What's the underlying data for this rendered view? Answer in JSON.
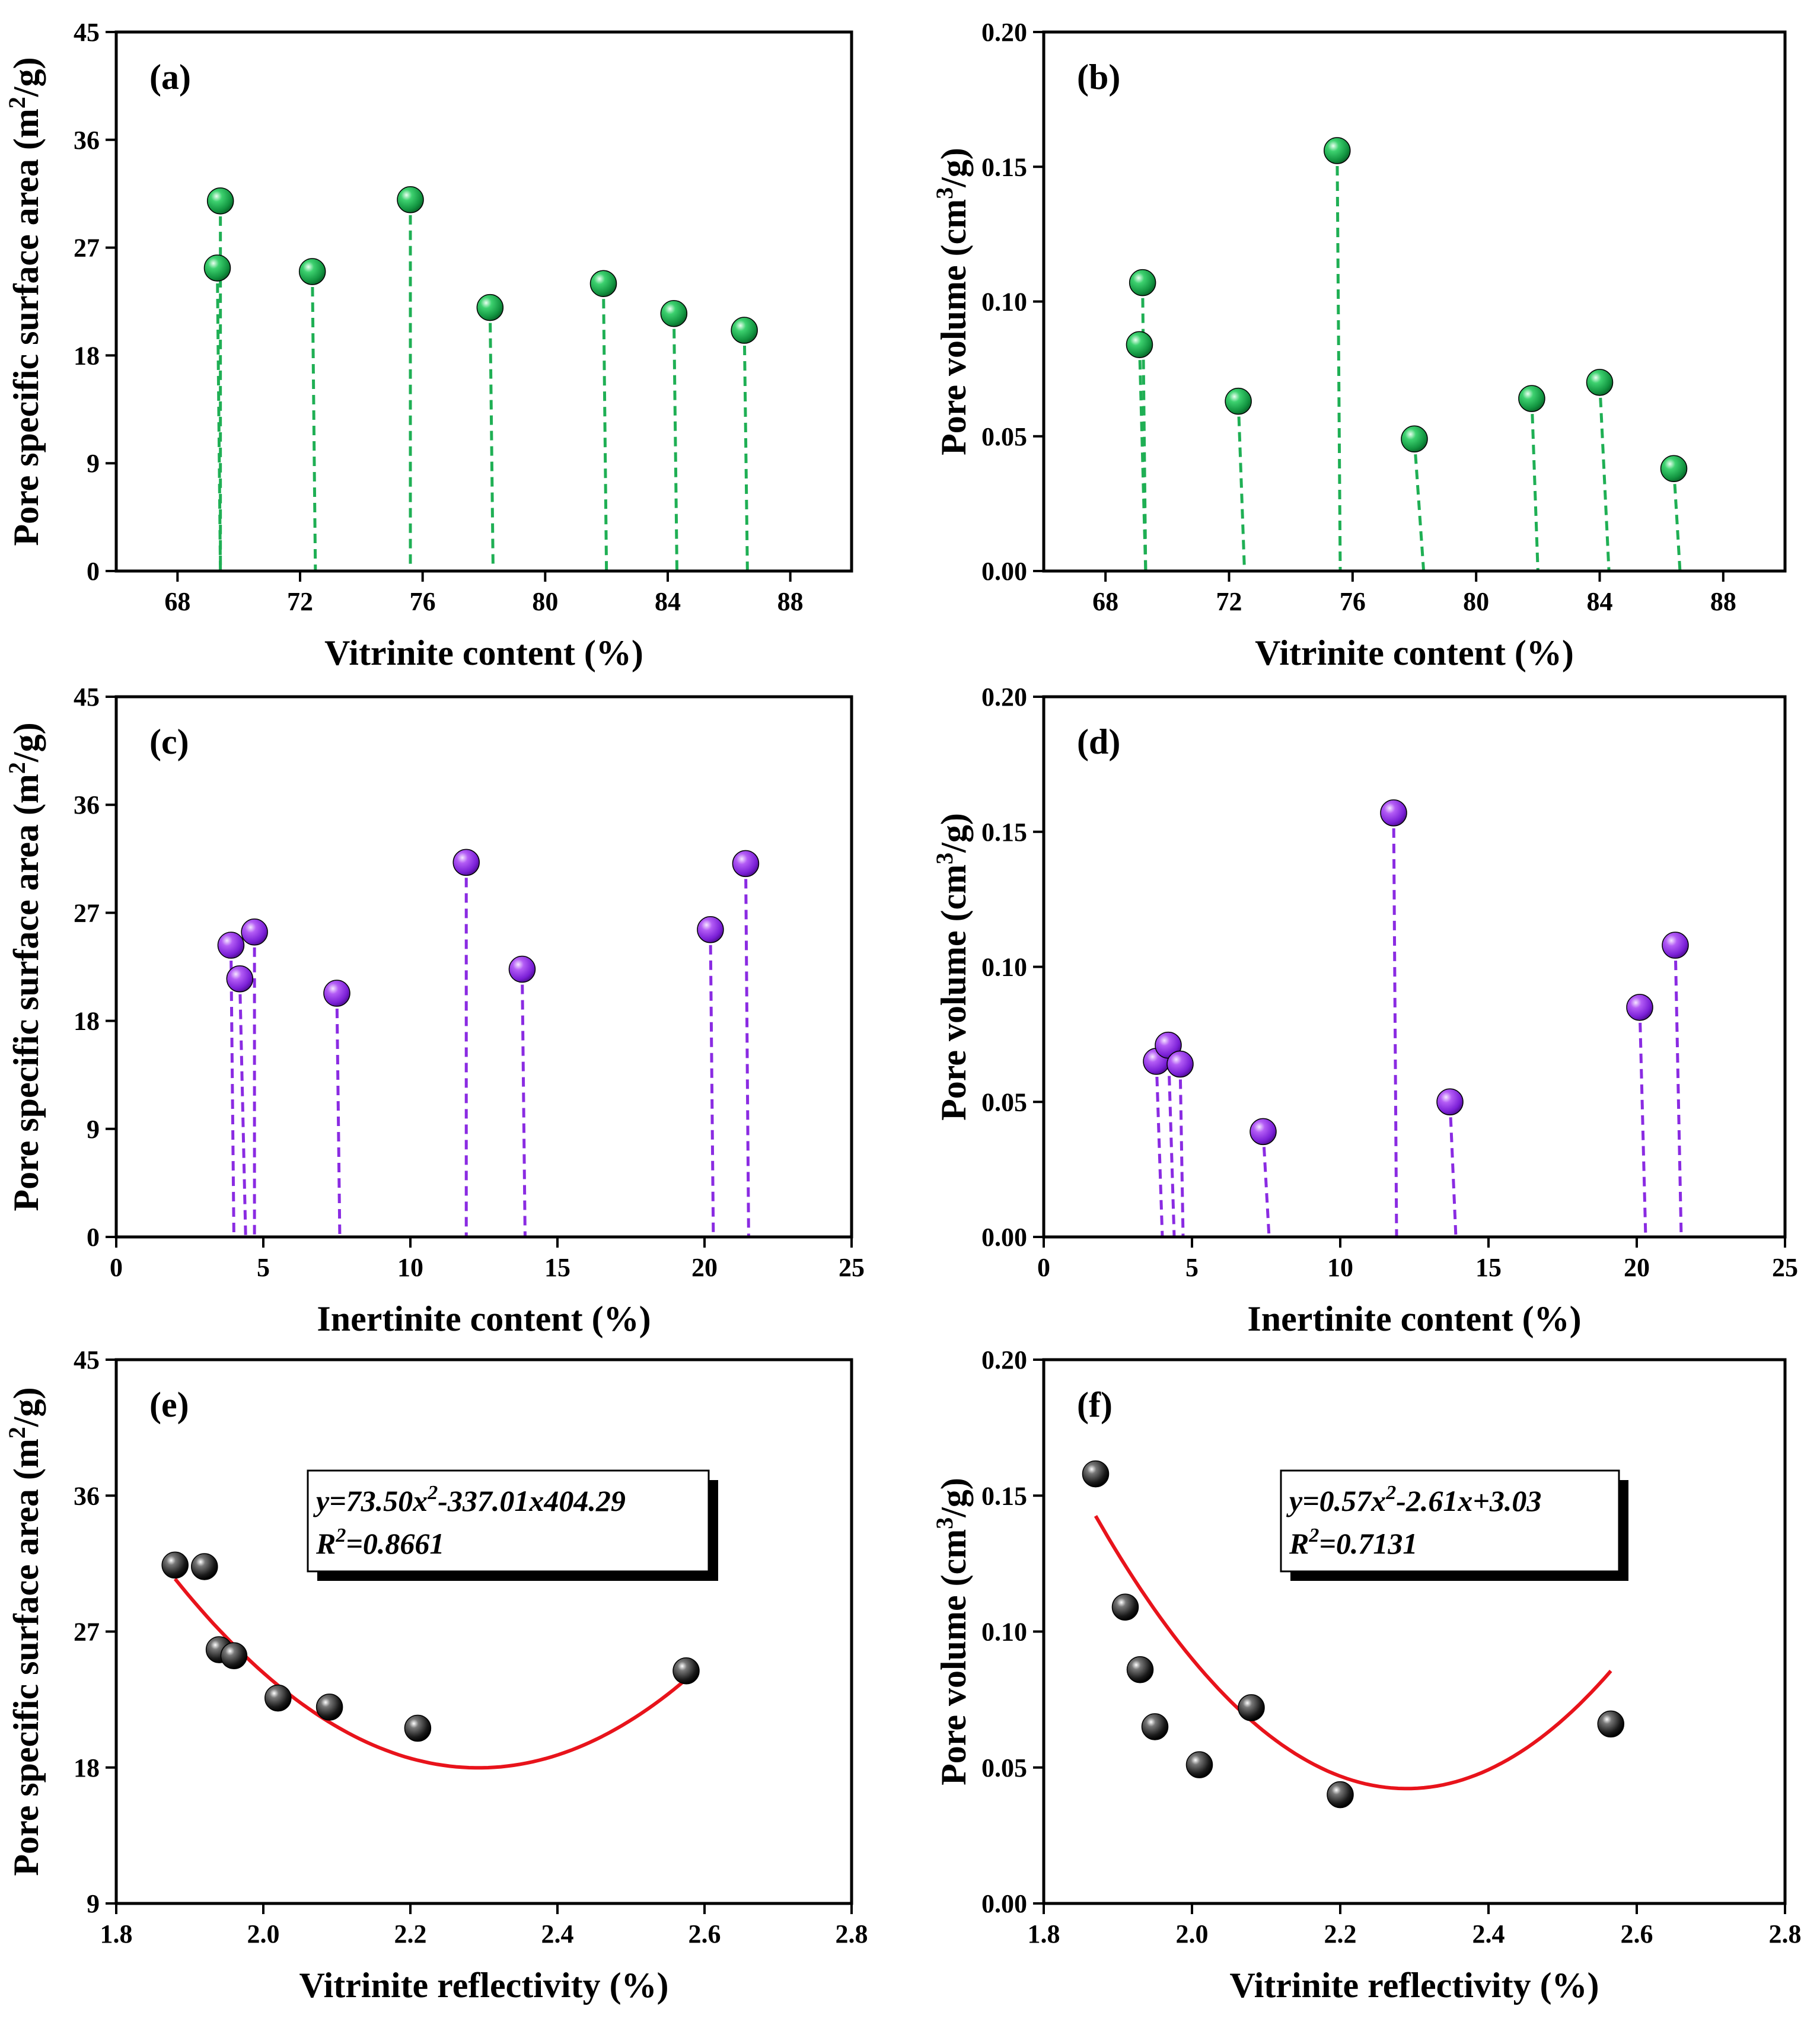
{
  "colors": {
    "green": "#1DA84E",
    "purple": "#8A2BE2",
    "black": "#111111",
    "fit": "#E8131B",
    "stem_green": "#1FAF54",
    "stem_purple": "#8A2BE2"
  },
  "chart_data": [
    {
      "id": "a",
      "type": "scatter",
      "style": "stem",
      "tag": "(a)",
      "xlabel": "Vitrinite content (%)",
      "ylabel_parts": [
        "Pore specific surface area (m",
        "2",
        "/g)"
      ],
      "xlim": [
        66,
        90
      ],
      "ylim": [
        0,
        45
      ],
      "xticks": [
        68,
        72,
        76,
        80,
        84,
        88
      ],
      "yticks": [
        0,
        9,
        18,
        27,
        36,
        45
      ],
      "marker": "green",
      "points": [
        {
          "x": 69.4,
          "y": 30.9,
          "x0": 69.4
        },
        {
          "x": 69.3,
          "y": 25.3,
          "x0": 69.4
        },
        {
          "x": 72.4,
          "y": 25.0,
          "x0": 72.5
        },
        {
          "x": 75.6,
          "y": 31.0,
          "x0": 75.6
        },
        {
          "x": 78.2,
          "y": 22.0,
          "x0": 78.3
        },
        {
          "x": 81.9,
          "y": 24.0,
          "x0": 82.0
        },
        {
          "x": 84.2,
          "y": 21.5,
          "x0": 84.3
        },
        {
          "x": 86.5,
          "y": 20.1,
          "x0": 86.6
        }
      ]
    },
    {
      "id": "b",
      "type": "scatter",
      "style": "stem",
      "tag": "(b)",
      "xlabel": "Vitrinite content (%)",
      "ylabel_parts": [
        "Pore volume (cm",
        "3",
        "/g)"
      ],
      "xlim": [
        66,
        90
      ],
      "ylim": [
        0,
        0.2
      ],
      "xticks": [
        68,
        72,
        76,
        80,
        84,
        88
      ],
      "yticks": [
        0.0,
        0.05,
        0.1,
        0.15,
        0.2
      ],
      "ydecimals": 2,
      "marker": "green",
      "points": [
        {
          "x": 69.2,
          "y": 0.107,
          "x0": 69.3
        },
        {
          "x": 69.1,
          "y": 0.084,
          "x0": 69.3
        },
        {
          "x": 72.3,
          "y": 0.063,
          "x0": 72.5
        },
        {
          "x": 75.5,
          "y": 0.156,
          "x0": 75.6
        },
        {
          "x": 78.0,
          "y": 0.049,
          "x0": 78.3
        },
        {
          "x": 81.8,
          "y": 0.064,
          "x0": 82.0
        },
        {
          "x": 84.0,
          "y": 0.07,
          "x0": 84.3
        },
        {
          "x": 86.4,
          "y": 0.038,
          "x0": 86.6
        }
      ]
    },
    {
      "id": "c",
      "type": "scatter",
      "style": "stem",
      "tag": "(c)",
      "xlabel": "Inertinite content (%)",
      "ylabel_parts": [
        "Pore specific surface area (m",
        "2",
        "/g)"
      ],
      "xlim": [
        0,
        25
      ],
      "ylim": [
        0,
        45
      ],
      "xticks": [
        0,
        5,
        10,
        15,
        20,
        25
      ],
      "yticks": [
        0,
        9,
        18,
        27,
        36,
        45
      ],
      "marker": "purple",
      "points": [
        {
          "x": 3.9,
          "y": 24.3,
          "x0": 4.0
        },
        {
          "x": 4.2,
          "y": 21.5,
          "x0": 4.4
        },
        {
          "x": 4.7,
          "y": 25.4,
          "x0": 4.7
        },
        {
          "x": 7.5,
          "y": 20.3,
          "x0": 7.6
        },
        {
          "x": 11.9,
          "y": 31.2,
          "x0": 11.9
        },
        {
          "x": 13.8,
          "y": 22.3,
          "x0": 13.9
        },
        {
          "x": 20.2,
          "y": 25.6,
          "x0": 20.3
        },
        {
          "x": 21.4,
          "y": 31.1,
          "x0": 21.5
        }
      ]
    },
    {
      "id": "d",
      "type": "scatter",
      "style": "stem",
      "tag": "(d)",
      "xlabel": "Inertinite content (%)",
      "ylabel_parts": [
        "Pore volume (cm",
        "3",
        "/g)"
      ],
      "xlim": [
        0,
        25
      ],
      "ylim": [
        0,
        0.2
      ],
      "xticks": [
        0,
        5,
        10,
        15,
        20,
        25
      ],
      "yticks": [
        0.0,
        0.05,
        0.1,
        0.15,
        0.2
      ],
      "ydecimals": 2,
      "marker": "purple",
      "points": [
        {
          "x": 3.8,
          "y": 0.065,
          "x0": 4.0
        },
        {
          "x": 4.2,
          "y": 0.071,
          "x0": 4.4
        },
        {
          "x": 4.6,
          "y": 0.064,
          "x0": 4.7
        },
        {
          "x": 7.4,
          "y": 0.039,
          "x0": 7.6
        },
        {
          "x": 11.8,
          "y": 0.157,
          "x0": 11.9
        },
        {
          "x": 13.7,
          "y": 0.05,
          "x0": 13.9
        },
        {
          "x": 20.1,
          "y": 0.085,
          "x0": 20.3
        },
        {
          "x": 21.3,
          "y": 0.108,
          "x0": 21.5
        }
      ]
    },
    {
      "id": "e",
      "type": "scatter",
      "style": "fit",
      "tag": "(e)",
      "xlabel": "Vitrinite reflectivity (%)",
      "ylabel_parts": [
        "Pore specific surface area (m",
        "2",
        "/g)"
      ],
      "xlim": [
        1.8,
        2.8
      ],
      "ylim": [
        9,
        45
      ],
      "xticks": [
        1.8,
        2.0,
        2.2,
        2.4,
        2.6,
        2.8
      ],
      "yticks": [
        9,
        18,
        27,
        36,
        45
      ],
      "xdecimals": 1,
      "marker": "black",
      "points": [
        {
          "x": 1.88,
          "y": 31.4
        },
        {
          "x": 1.92,
          "y": 31.3
        },
        {
          "x": 1.94,
          "y": 25.8
        },
        {
          "x": 1.96,
          "y": 25.4
        },
        {
          "x": 2.02,
          "y": 22.6
        },
        {
          "x": 2.09,
          "y": 22.0
        },
        {
          "x": 2.21,
          "y": 20.6
        },
        {
          "x": 2.575,
          "y": 24.4
        }
      ],
      "fit": {
        "coef": [
          73.5,
          -337.01,
          404.29
        ],
        "x_range": [
          1.88,
          2.575
        ]
      },
      "equation": {
        "line1": "y=73.50x",
        "line1_sup": "2",
        "line1_rest": "-337.01x404.29",
        "line2_pre": "R",
        "line2_sup": "2",
        "line2_rest": "=0.8661"
      }
    },
    {
      "id": "f",
      "type": "scatter",
      "style": "fit",
      "tag": "(f)",
      "xlabel": "Vitrinite reflectivity (%)",
      "ylabel_parts": [
        "Pore volume (cm",
        "3",
        "/g)"
      ],
      "xlim": [
        1.8,
        2.8
      ],
      "ylim": [
        0,
        0.2
      ],
      "xticks": [
        1.8,
        2.0,
        2.2,
        2.4,
        2.6,
        2.8
      ],
      "yticks": [
        0.0,
        0.05,
        0.1,
        0.15,
        0.2
      ],
      "xdecimals": 1,
      "ydecimals": 2,
      "marker": "black",
      "points": [
        {
          "x": 1.87,
          "y": 0.158
        },
        {
          "x": 1.91,
          "y": 0.109
        },
        {
          "x": 1.93,
          "y": 0.086
        },
        {
          "x": 1.95,
          "y": 0.065
        },
        {
          "x": 2.01,
          "y": 0.051
        },
        {
          "x": 2.08,
          "y": 0.072
        },
        {
          "x": 2.2,
          "y": 0.04
        },
        {
          "x": 2.565,
          "y": 0.066
        }
      ],
      "fit": {
        "coef": [
          0.57,
          -2.61,
          3.03
        ],
        "x_range": [
          1.87,
          2.565
        ]
      },
      "equation": {
        "line1": "y=0.57x",
        "line1_sup": "2",
        "line1_rest": "-2.61x+3.03",
        "line2_pre": "R",
        "line2_sup": "2",
        "line2_rest": "=0.7131"
      }
    }
  ]
}
